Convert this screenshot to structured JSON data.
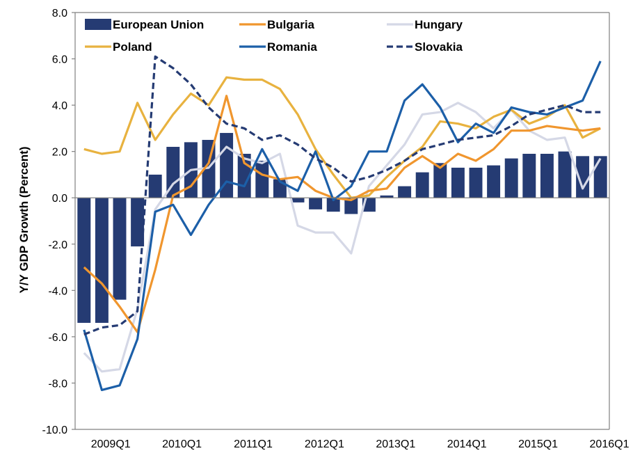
{
  "chart_data": {
    "type": "bar+line",
    "title": "",
    "xlabel": "",
    "ylabel": "Y/Y GDP Growth (Percent)",
    "ylim": [
      -10,
      8
    ],
    "yticks": [
      -10,
      -8,
      -6,
      -4,
      -2,
      0,
      2,
      4,
      6,
      8
    ],
    "ytick_labels": [
      "-10.0",
      "-8.0",
      "-6.0",
      "-4.0",
      "-2.0",
      "0.0",
      "2.0",
      "4.0",
      "6.0",
      "8.0"
    ],
    "categories": [
      "2009Q1",
      "2009Q2",
      "2009Q3",
      "2009Q4",
      "2010Q1",
      "2010Q2",
      "2010Q3",
      "2010Q4",
      "2011Q1",
      "2011Q2",
      "2011Q3",
      "2011Q4",
      "2012Q1",
      "2012Q2",
      "2012Q3",
      "2012Q4",
      "2013Q1",
      "2013Q2",
      "2013Q3",
      "2013Q4",
      "2014Q1",
      "2014Q2",
      "2014Q3",
      "2014Q4",
      "2015Q1",
      "2015Q2",
      "2015Q3",
      "2015Q4",
      "2016Q1",
      "2016Q2"
    ],
    "xtick_labels": [
      "2009Q1",
      "2010Q1",
      "2011Q1",
      "2012Q1",
      "2013Q1",
      "2014Q1",
      "2015Q1",
      "2016Q1"
    ],
    "grid": false,
    "legend": "top",
    "series": [
      {
        "name": "European Union",
        "kind": "bar",
        "color": "#253B73",
        "values": [
          -5.4,
          -5.4,
          -4.4,
          -2.1,
          1.0,
          2.2,
          2.4,
          2.5,
          2.8,
          1.9,
          1.6,
          0.8,
          -0.2,
          -0.5,
          -0.6,
          -0.7,
          -0.6,
          0.1,
          0.5,
          1.1,
          1.5,
          1.3,
          1.3,
          1.4,
          1.7,
          1.9,
          1.9,
          2.0,
          1.8,
          1.8
        ]
      },
      {
        "name": "Bulgaria",
        "kind": "line",
        "color": "#F0962E",
        "dash": "",
        "values": [
          -3.0,
          -3.7,
          -4.7,
          -5.8,
          -3.1,
          0.1,
          0.5,
          1.5,
          4.4,
          1.5,
          1.0,
          0.8,
          0.9,
          0.3,
          0.0,
          -0.1,
          0.3,
          0.4,
          1.3,
          1.8,
          1.3,
          1.9,
          1.6,
          2.1,
          2.9,
          2.9,
          3.1,
          3.0,
          2.9,
          3.0
        ]
      },
      {
        "name": "Hungary",
        "kind": "line",
        "color": "#D5D8E6",
        "dash": "",
        "values": [
          -6.7,
          -7.5,
          -7.4,
          -4.8,
          -0.5,
          0.6,
          1.2,
          1.3,
          2.2,
          1.7,
          1.5,
          1.9,
          -1.2,
          -1.5,
          -1.5,
          -2.4,
          0.5,
          1.4,
          2.3,
          3.6,
          3.7,
          4.1,
          3.7,
          3.0,
          3.8,
          2.9,
          2.5,
          2.6,
          0.4,
          1.7
        ]
      },
      {
        "name": "Poland",
        "kind": "line",
        "color": "#E8B23F",
        "dash": "",
        "values": [
          2.1,
          1.9,
          2.0,
          4.1,
          2.5,
          3.6,
          4.5,
          4.0,
          5.2,
          5.1,
          5.1,
          4.7,
          3.6,
          2.1,
          1.0,
          0.0,
          0.1,
          0.9,
          1.6,
          2.2,
          3.3,
          3.2,
          3.0,
          3.5,
          3.8,
          3.2,
          3.5,
          4.0,
          2.6,
          3.0
        ]
      },
      {
        "name": "Romania",
        "kind": "line",
        "color": "#1C5FA8",
        "dash": "",
        "values": [
          -5.7,
          -8.3,
          -8.1,
          -6.1,
          -0.6,
          -0.3,
          -1.6,
          -0.3,
          0.7,
          0.5,
          2.1,
          0.7,
          0.3,
          2.0,
          -0.1,
          0.5,
          2.0,
          2.0,
          4.2,
          4.9,
          3.9,
          2.4,
          3.2,
          2.8,
          3.9,
          3.7,
          3.6,
          3.9,
          4.2,
          5.9
        ]
      },
      {
        "name": "Slovakia",
        "kind": "line",
        "color": "#253B73",
        "dash": "9,5",
        "values": [
          -5.9,
          -5.6,
          -5.5,
          -4.9,
          6.1,
          5.6,
          4.9,
          3.9,
          3.2,
          3.0,
          2.5,
          2.7,
          2.3,
          1.7,
          1.3,
          0.7,
          0.9,
          1.2,
          1.6,
          2.1,
          2.3,
          2.5,
          2.6,
          2.7,
          3.1,
          3.6,
          3.8,
          4.0,
          3.7,
          3.7
        ]
      }
    ]
  }
}
